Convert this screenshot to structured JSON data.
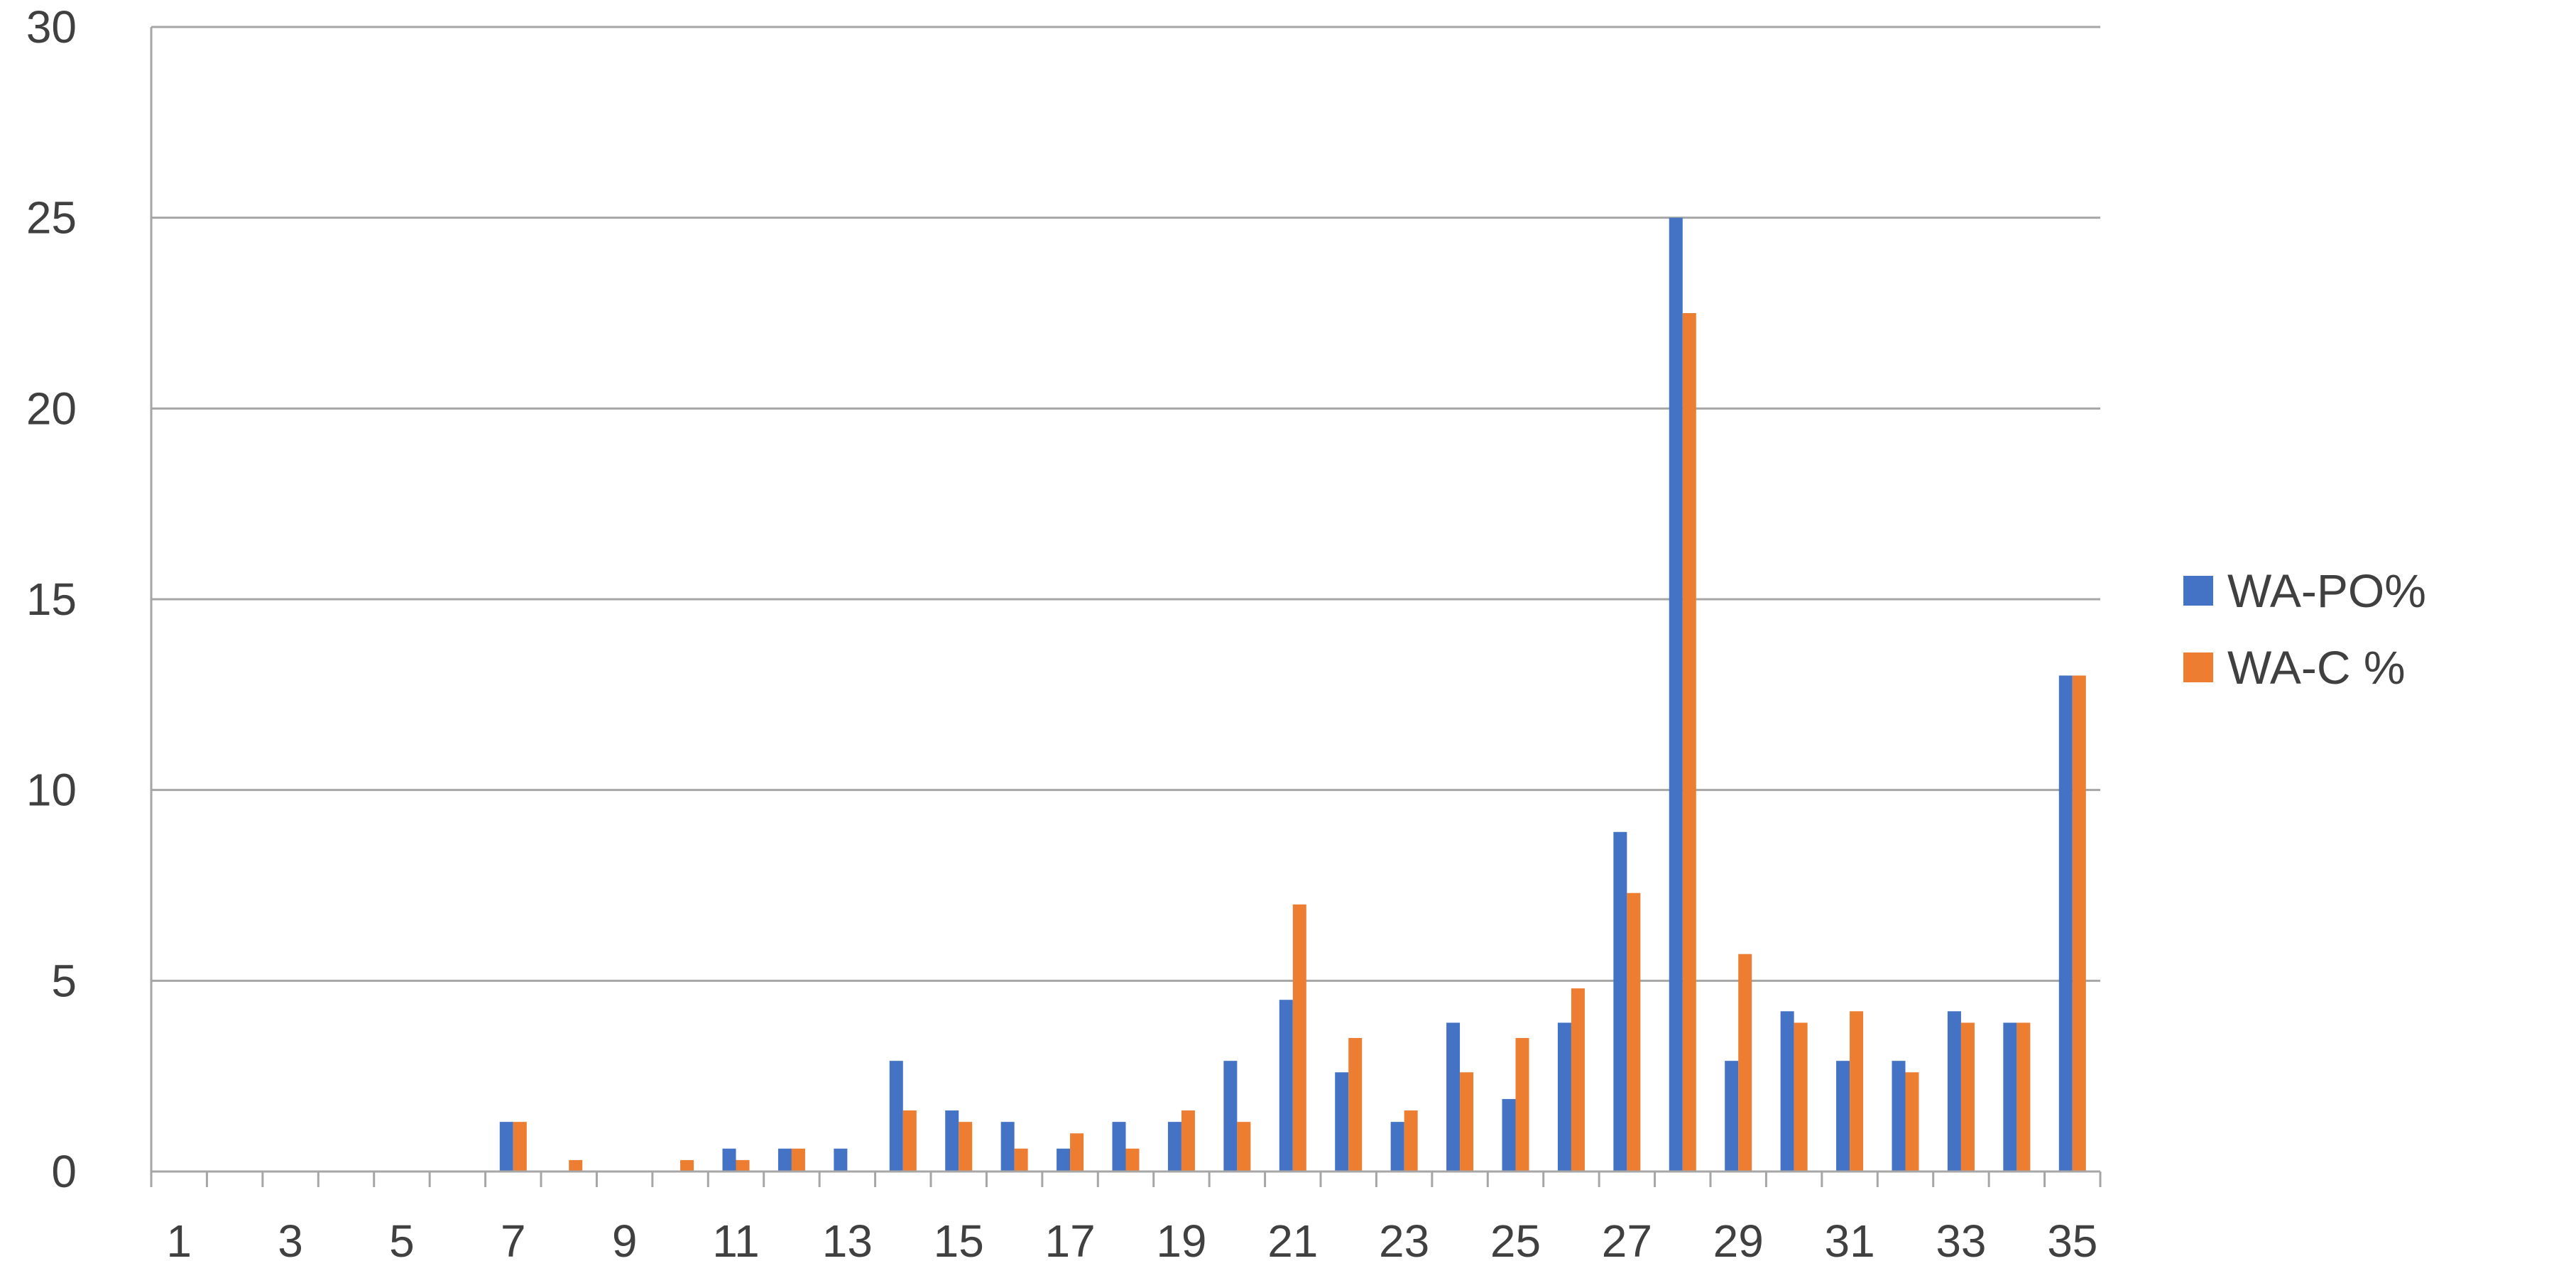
{
  "chart_data": {
    "type": "bar",
    "title": "",
    "xlabel": "",
    "ylabel": "",
    "ylim": [
      0,
      30
    ],
    "yticks": [
      0,
      5,
      10,
      15,
      20,
      25,
      30
    ],
    "categories": [
      1,
      2,
      3,
      4,
      5,
      6,
      7,
      8,
      9,
      10,
      11,
      12,
      13,
      14,
      15,
      16,
      17,
      18,
      19,
      20,
      21,
      22,
      23,
      24,
      25,
      26,
      27,
      28,
      29,
      30,
      31,
      32,
      33,
      34,
      35
    ],
    "x_tick_labels_shown": [
      1,
      3,
      5,
      7,
      9,
      11,
      13,
      15,
      17,
      19,
      21,
      23,
      25,
      27,
      29,
      31,
      33,
      35
    ],
    "grid": true,
    "legend_position": "right",
    "series": [
      {
        "name": "WA-PO%",
        "color": "#4472C4",
        "values": [
          0,
          0,
          0,
          0,
          0,
          0,
          1.3,
          0,
          0,
          0,
          0.6,
          0.6,
          0.6,
          2.9,
          1.6,
          1.3,
          0.6,
          1.3,
          1.3,
          2.9,
          4.5,
          2.6,
          1.3,
          3.9,
          1.9,
          3.9,
          8.9,
          25.0,
          2.9,
          4.2,
          2.9,
          2.9,
          4.2,
          3.9,
          13.0
        ]
      },
      {
        "name": "WA-C %",
        "color": "#ED7D31",
        "values": [
          0,
          0,
          0,
          0,
          0,
          0,
          1.3,
          0.3,
          0,
          0.3,
          0.3,
          0.6,
          0,
          1.6,
          1.3,
          0.6,
          1.0,
          0.6,
          1.6,
          1.3,
          7.0,
          3.5,
          1.6,
          2.6,
          3.5,
          4.8,
          7.3,
          22.5,
          5.7,
          3.9,
          4.2,
          2.6,
          3.9,
          3.9,
          13.0
        ]
      }
    ]
  }
}
